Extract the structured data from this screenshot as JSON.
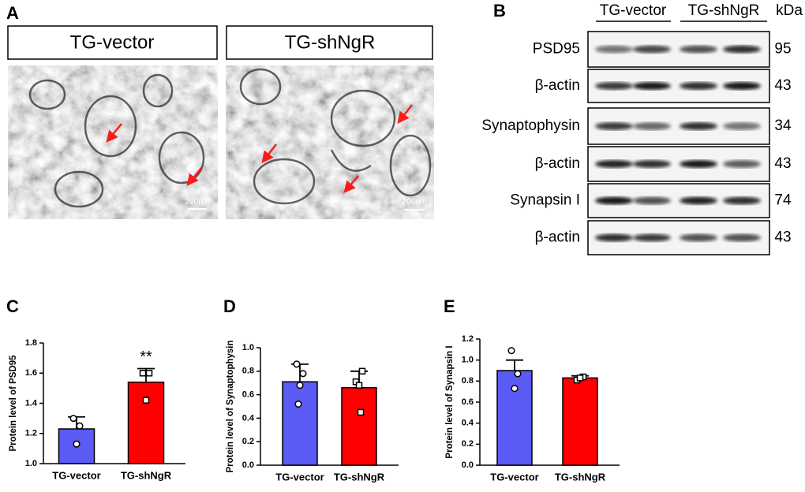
{
  "panel_labels": [
    "A",
    "B",
    "C",
    "D",
    "E"
  ],
  "em_images": [
    {
      "title": "TG-vector",
      "scale_bar": "200nm"
    },
    {
      "title": "TG-shNgR",
      "scale_bar": "200nm"
    }
  ],
  "blot": {
    "groups": [
      "TG-vector",
      "TG-shNgR"
    ],
    "unit": "kDa",
    "rows": [
      {
        "protein": "PSD95",
        "kda": 95
      },
      {
        "protein": "β-actin",
        "kda": 43
      },
      {
        "protein": "Synaptophysin",
        "kda": 34
      },
      {
        "protein": "β-actin",
        "kda": 43
      },
      {
        "protein": "Synapsin I",
        "kda": 74
      },
      {
        "protein": "β-actin",
        "kda": 43
      }
    ]
  },
  "chart_data": [
    {
      "type": "bar",
      "ylabel": "Protein level of PSD95",
      "categories": [
        "TG-vector",
        "TG-shNgR"
      ],
      "values": [
        1.23,
        1.54
      ],
      "errors": [
        0.08,
        0.09
      ],
      "points": [
        [
          1.3,
          1.25,
          1.13
        ],
        [
          1.6,
          1.6,
          1.42
        ]
      ],
      "colors": [
        "#5a5af5",
        "#ff0000"
      ],
      "markers": [
        "circle",
        "square"
      ],
      "annotation": "**",
      "ylim": [
        1.0,
        1.8
      ],
      "yticks": [
        {
          "value": 1.0,
          "label": "1.0"
        },
        1.2,
        1.4,
        1.6,
        1.8
      ]
    },
    {
      "type": "bar",
      "ylabel": "Protein level of Synaptophysin",
      "categories": [
        "TG-vector",
        "TG-shNgR"
      ],
      "values": [
        0.71,
        0.66
      ],
      "errors": [
        0.15,
        0.14
      ],
      "points": [
        [
          0.86,
          0.78,
          0.68,
          0.52
        ],
        [
          0.8,
          0.71,
          0.68,
          0.45
        ]
      ],
      "colors": [
        "#5a5af5",
        "#ff0000"
      ],
      "markers": [
        "circle",
        "square"
      ],
      "ylim": [
        0,
        1.0
      ],
      "yticks": [
        {
          "value": 0,
          "label": "0.0"
        },
        0.2,
        0.4,
        0.6,
        0.8,
        {
          "value": 1.0,
          "label": "1.0"
        }
      ]
    },
    {
      "type": "bar",
      "ylabel": "Protein level of Synapsin I",
      "categories": [
        "TG-vector",
        "TG-shNgR"
      ],
      "values": [
        0.9,
        0.83
      ],
      "errors": [
        0.1,
        0.02
      ],
      "points": [
        [
          1.09,
          0.87,
          0.73
        ],
        [
          0.84,
          0.81,
          0.83
        ]
      ],
      "colors": [
        "#5a5af5",
        "#ff0000"
      ],
      "markers": [
        "circle",
        "square"
      ],
      "ylim": [
        0,
        1.2
      ],
      "yticks": [
        {
          "value": 0,
          "label": "0.0"
        },
        0.2,
        0.4,
        0.6,
        0.8,
        {
          "value": 1.0,
          "label": "1.0"
        },
        1.2
      ]
    }
  ]
}
